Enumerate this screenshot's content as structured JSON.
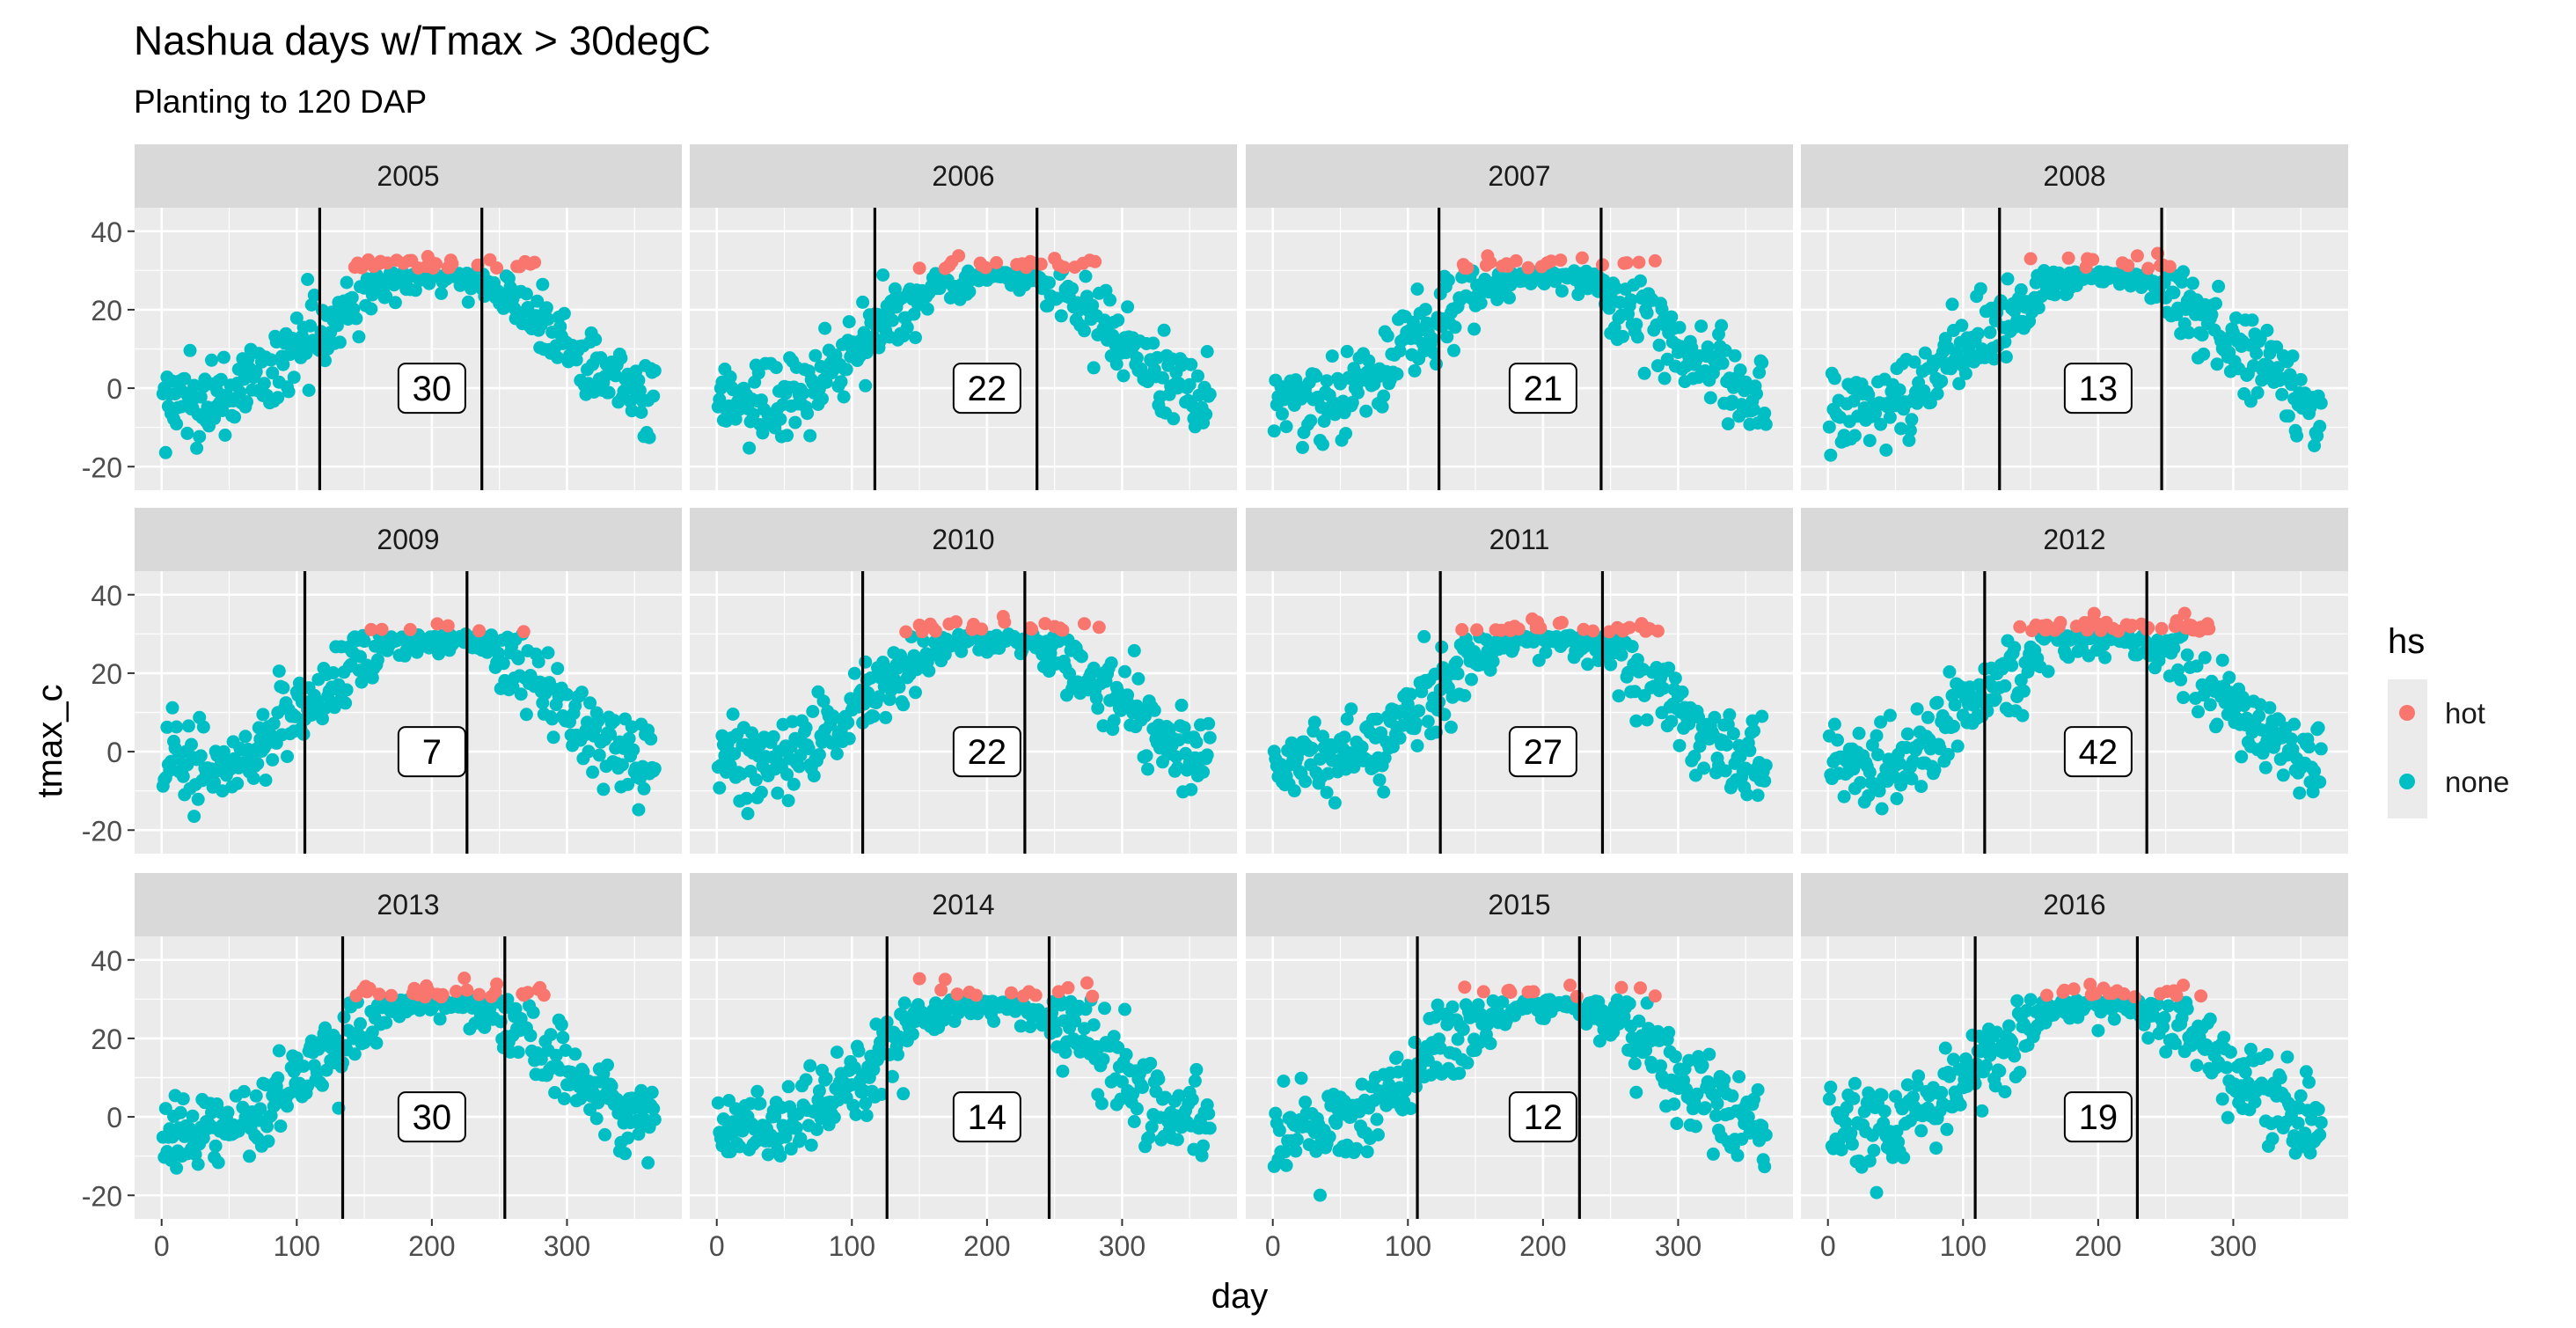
{
  "chart_data": {
    "type": "scatter",
    "title": "Nashua days w/Tmax > 30degC",
    "subtitle": "Planting to 120 DAP",
    "xlabel": "day",
    "ylabel": "tmax_c",
    "xlim": [
      -20,
      385
    ],
    "ylim": [
      -26,
      46
    ],
    "x_ticks": [
      0,
      100,
      200,
      300
    ],
    "x_tick_labels": [
      "0",
      "100",
      "200",
      "300"
    ],
    "y_ticks": [
      -20,
      0,
      20,
      40
    ],
    "y_tick_labels": [
      "-20",
      "0",
      "20",
      "40"
    ],
    "grid": true,
    "legend": {
      "title": "hs",
      "position": "right",
      "items": [
        {
          "label": "hot",
          "color": "#F8766D"
        },
        {
          "label": "none",
          "color": "#00BFC4"
        }
      ]
    },
    "hot_threshold_c": 30,
    "panels": [
      {
        "year": "2005",
        "planting_day": 117,
        "end_day": 237,
        "hot_days": 30,
        "label": "30"
      },
      {
        "year": "2006",
        "planting_day": 117,
        "end_day": 237,
        "hot_days": 22,
        "label": "22"
      },
      {
        "year": "2007",
        "planting_day": 123,
        "end_day": 243,
        "hot_days": 21,
        "label": "21"
      },
      {
        "year": "2008",
        "planting_day": 127,
        "end_day": 247,
        "hot_days": 13,
        "label": "13"
      },
      {
        "year": "2009",
        "planting_day": 106,
        "end_day": 226,
        "hot_days": 7,
        "label": "7"
      },
      {
        "year": "2010",
        "planting_day": 108,
        "end_day": 228,
        "hot_days": 22,
        "label": "22"
      },
      {
        "year": "2011",
        "planting_day": 124,
        "end_day": 244,
        "hot_days": 27,
        "label": "27"
      },
      {
        "year": "2012",
        "planting_day": 116,
        "end_day": 236,
        "hot_days": 42,
        "label": "42"
      },
      {
        "year": "2013",
        "planting_day": 134,
        "end_day": 254,
        "hot_days": 30,
        "label": "30"
      },
      {
        "year": "2014",
        "planting_day": 126,
        "end_day": 246,
        "hot_days": 14,
        "label": "14"
      },
      {
        "year": "2015",
        "planting_day": 107,
        "end_day": 227,
        "hot_days": 12,
        "label": "12"
      },
      {
        "year": "2016",
        "planting_day": 109,
        "end_day": 229,
        "hot_days": 19,
        "label": "19"
      }
    ]
  }
}
